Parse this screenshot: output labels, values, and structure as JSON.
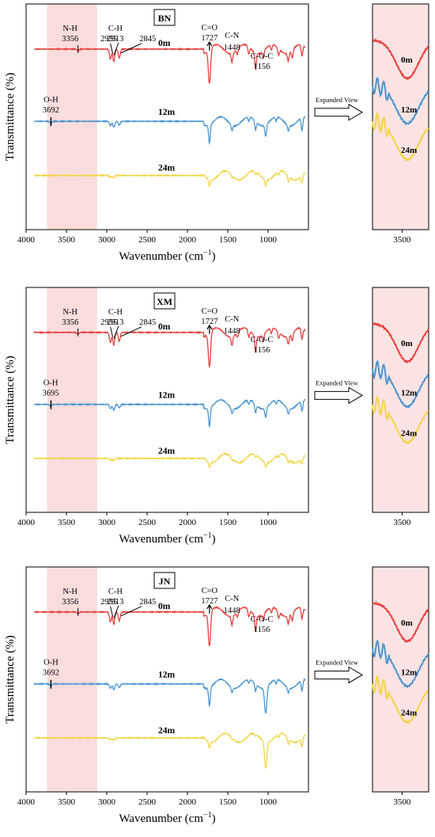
{
  "figure": {
    "y_axis_title": "Transmittance (%)",
    "x_axis_title_main": "Wavenumber (cm",
    "x_axis_title_sup": "−1",
    "x_axis_title_end": ")",
    "expanded_view_label": "Expanded View",
    "colors": {
      "0m": "#e8413e",
      "12m": "#4a95cf",
      "24m": "#f2d543",
      "highlight": "#f9dcdc",
      "inset_bg": "#fbe3e3"
    }
  },
  "chart_data": [
    {
      "type": "line",
      "sample": "BN",
      "xlabel": "Wavenumber (cm−1)",
      "ylabel": "Transmittance (%)",
      "xlim": [
        4000,
        500
      ],
      "x_ticks": [
        "4000",
        "3500",
        "3000",
        "2500",
        "2000",
        "1500",
        "1000"
      ],
      "highlight_range": [
        3740,
        3120
      ],
      "series": [
        {
          "name": "0m",
          "peaks": [
            {
              "x": 3356,
              "depth": 0.05
            },
            {
              "x": 2955,
              "depth": 0.28
            },
            {
              "x": 2913,
              "depth": 0.35
            },
            {
              "x": 2845,
              "depth": 0.25
            },
            {
              "x": 1727,
              "depth": 0.95
            },
            {
              "x": 1448,
              "depth": 0.25
            },
            {
              "x": 1380,
              "depth": 0.14
            },
            {
              "x": 1240,
              "depth": 0.2
            },
            {
              "x": 1156,
              "depth": 0.45
            },
            {
              "x": 1060,
              "depth": 0.2
            },
            {
              "x": 960,
              "depth": 0.15
            },
            {
              "x": 870,
              "depth": 0.18
            },
            {
              "x": 750,
              "depth": 0.22
            },
            {
              "x": 700,
              "depth": 0.22
            },
            {
              "x": 580,
              "depth": 0.3
            }
          ]
        },
        {
          "name": "12m",
          "peaks": [
            {
              "x": 3692,
              "depth": 0.06
            },
            {
              "x": 2955,
              "depth": 0.12
            },
            {
              "x": 2913,
              "depth": 0.16
            },
            {
              "x": 2845,
              "depth": 0.1
            },
            {
              "x": 1727,
              "depth": 0.5
            },
            {
              "x": 1448,
              "depth": 0.16
            },
            {
              "x": 1240,
              "depth": 0.12
            },
            {
              "x": 1156,
              "depth": 0.24
            },
            {
              "x": 1030,
              "depth": 0.32
            },
            {
              "x": 900,
              "depth": 0.12
            },
            {
              "x": 750,
              "depth": 0.16
            },
            {
              "x": 580,
              "depth": 0.36
            }
          ]
        },
        {
          "name": "24m",
          "peaks": [
            {
              "x": 2955,
              "depth": 0.05
            },
            {
              "x": 2913,
              "depth": 0.07
            },
            {
              "x": 1727,
              "depth": 0.18
            },
            {
              "x": 1448,
              "depth": 0.06
            },
            {
              "x": 1156,
              "depth": 0.08
            },
            {
              "x": 1030,
              "depth": 0.15
            },
            {
              "x": 870,
              "depth": 0.1
            },
            {
              "x": 750,
              "depth": 0.16
            },
            {
              "x": 580,
              "depth": 0.2
            }
          ]
        }
      ],
      "annotations": [
        {
          "text": "N-H",
          "text2": "3356",
          "x": 3356
        },
        {
          "text": "",
          "text2": "2955",
          "x": 2955
        },
        {
          "text": "C-H",
          "text2": "2913",
          "x": 2913
        },
        {
          "text": "",
          "text2": "2845",
          "x": 2845
        },
        {
          "text": "C=O",
          "text2": "1727",
          "x": 1727
        },
        {
          "text": "C-N",
          "text2": "1448",
          "x": 1448
        },
        {
          "text": "C-O-C",
          "text2": "1156",
          "x": 1156
        },
        {
          "text": "O-H",
          "text2": "3692",
          "x": 3692
        }
      ],
      "inset": {
        "xlim": [
          3700,
          3320
        ],
        "tick": "3500"
      }
    },
    {
      "type": "line",
      "sample": "XM",
      "xlabel": "Wavenumber (cm−1)",
      "ylabel": "Transmittance (%)",
      "xlim": [
        4000,
        500
      ],
      "x_ticks": [
        "4000",
        "3500",
        "3000",
        "2500",
        "2000",
        "1500",
        "1000"
      ],
      "highlight_range": [
        3740,
        3120
      ],
      "series": [
        {
          "name": "0m",
          "peaks": [
            {
              "x": 3356,
              "depth": 0.05
            },
            {
              "x": 2955,
              "depth": 0.28
            },
            {
              "x": 2913,
              "depth": 0.35
            },
            {
              "x": 2845,
              "depth": 0.25
            },
            {
              "x": 1727,
              "depth": 0.95
            },
            {
              "x": 1448,
              "depth": 0.25
            },
            {
              "x": 1380,
              "depth": 0.14
            },
            {
              "x": 1240,
              "depth": 0.2
            },
            {
              "x": 1156,
              "depth": 0.45
            },
            {
              "x": 1060,
              "depth": 0.2
            },
            {
              "x": 960,
              "depth": 0.15
            },
            {
              "x": 870,
              "depth": 0.18
            },
            {
              "x": 750,
              "depth": 0.22
            },
            {
              "x": 700,
              "depth": 0.22
            },
            {
              "x": 580,
              "depth": 0.3
            }
          ]
        },
        {
          "name": "12m",
          "peaks": [
            {
              "x": 3695,
              "depth": 0.06
            },
            {
              "x": 2955,
              "depth": 0.12
            },
            {
              "x": 2913,
              "depth": 0.16
            },
            {
              "x": 2845,
              "depth": 0.1
            },
            {
              "x": 1727,
              "depth": 0.5
            },
            {
              "x": 1448,
              "depth": 0.16
            },
            {
              "x": 1240,
              "depth": 0.12
            },
            {
              "x": 1156,
              "depth": 0.24
            },
            {
              "x": 1030,
              "depth": 0.26
            },
            {
              "x": 900,
              "depth": 0.12
            },
            {
              "x": 750,
              "depth": 0.16
            },
            {
              "x": 580,
              "depth": 0.3
            }
          ]
        },
        {
          "name": "24m",
          "peaks": [
            {
              "x": 2955,
              "depth": 0.05
            },
            {
              "x": 2913,
              "depth": 0.07
            },
            {
              "x": 1727,
              "depth": 0.14
            },
            {
              "x": 1448,
              "depth": 0.05
            },
            {
              "x": 1156,
              "depth": 0.07
            },
            {
              "x": 1030,
              "depth": 0.12
            },
            {
              "x": 870,
              "depth": 0.08
            },
            {
              "x": 750,
              "depth": 0.12
            },
            {
              "x": 580,
              "depth": 0.16
            }
          ]
        }
      ],
      "annotations": [
        {
          "text": "N-H",
          "text2": "3356",
          "x": 3356
        },
        {
          "text": "",
          "text2": "2955",
          "x": 2955
        },
        {
          "text": "C-H",
          "text2": "2913",
          "x": 2913
        },
        {
          "text": "",
          "text2": "2845",
          "x": 2845
        },
        {
          "text": "C=O",
          "text2": "1727",
          "x": 1727
        },
        {
          "text": "C-N",
          "text2": "1448",
          "x": 1448
        },
        {
          "text": "C-O-C",
          "text2": "1156",
          "x": 1156
        },
        {
          "text": "O-H",
          "text2": "3695",
          "x": 3695
        }
      ],
      "inset": {
        "xlim": [
          3700,
          3320
        ],
        "tick": "3500"
      }
    },
    {
      "type": "line",
      "sample": "JN",
      "xlabel": "Wavenumber (cm−1)",
      "ylabel": "Transmittance (%)",
      "xlim": [
        4000,
        500
      ],
      "x_ticks": [
        "4000",
        "3500",
        "3000",
        "2500",
        "2000",
        "1500",
        "1000"
      ],
      "highlight_range": [
        3740,
        3120
      ],
      "series": [
        {
          "name": "0m",
          "peaks": [
            {
              "x": 3356,
              "depth": 0.05
            },
            {
              "x": 2955,
              "depth": 0.28
            },
            {
              "x": 2913,
              "depth": 0.35
            },
            {
              "x": 2845,
              "depth": 0.25
            },
            {
              "x": 1727,
              "depth": 0.95
            },
            {
              "x": 1448,
              "depth": 0.25
            },
            {
              "x": 1380,
              "depth": 0.14
            },
            {
              "x": 1240,
              "depth": 0.2
            },
            {
              "x": 1156,
              "depth": 0.45
            },
            {
              "x": 1060,
              "depth": 0.2
            },
            {
              "x": 960,
              "depth": 0.15
            },
            {
              "x": 870,
              "depth": 0.18
            },
            {
              "x": 750,
              "depth": 0.22
            },
            {
              "x": 700,
              "depth": 0.22
            },
            {
              "x": 580,
              "depth": 0.3
            }
          ]
        },
        {
          "name": "12m",
          "peaks": [
            {
              "x": 3692,
              "depth": 0.06
            },
            {
              "x": 2955,
              "depth": 0.12
            },
            {
              "x": 2913,
              "depth": 0.16
            },
            {
              "x": 2845,
              "depth": 0.1
            },
            {
              "x": 1727,
              "depth": 0.5
            },
            {
              "x": 1448,
              "depth": 0.14
            },
            {
              "x": 1240,
              "depth": 0.1
            },
            {
              "x": 1156,
              "depth": 0.2
            },
            {
              "x": 1030,
              "depth": 0.72
            },
            {
              "x": 900,
              "depth": 0.12
            },
            {
              "x": 750,
              "depth": 0.14
            },
            {
              "x": 580,
              "depth": 0.3
            }
          ]
        },
        {
          "name": "24m",
          "peaks": [
            {
              "x": 2955,
              "depth": 0.05
            },
            {
              "x": 2913,
              "depth": 0.07
            },
            {
              "x": 1727,
              "depth": 0.16
            },
            {
              "x": 1448,
              "depth": 0.05
            },
            {
              "x": 1156,
              "depth": 0.06
            },
            {
              "x": 1030,
              "depth": 0.72
            },
            {
              "x": 870,
              "depth": 0.1
            },
            {
              "x": 750,
              "depth": 0.16
            },
            {
              "x": 580,
              "depth": 0.24
            }
          ]
        }
      ],
      "annotations": [
        {
          "text": "N-H",
          "text2": "3356",
          "x": 3356
        },
        {
          "text": "",
          "text2": "2955",
          "x": 2955
        },
        {
          "text": "C-H",
          "text2": "2913",
          "x": 2913
        },
        {
          "text": "",
          "text2": "2845",
          "x": 2845
        },
        {
          "text": "C=O",
          "text2": "1727",
          "x": 1727
        },
        {
          "text": "C-N",
          "text2": "1448",
          "x": 1448
        },
        {
          "text": "C-O-C",
          "text2": "1156",
          "x": 1156
        },
        {
          "text": "O-H",
          "text2": "3692",
          "x": 3692
        }
      ],
      "inset": {
        "xlim": [
          3700,
          3320
        ],
        "tick": "3500"
      }
    }
  ]
}
